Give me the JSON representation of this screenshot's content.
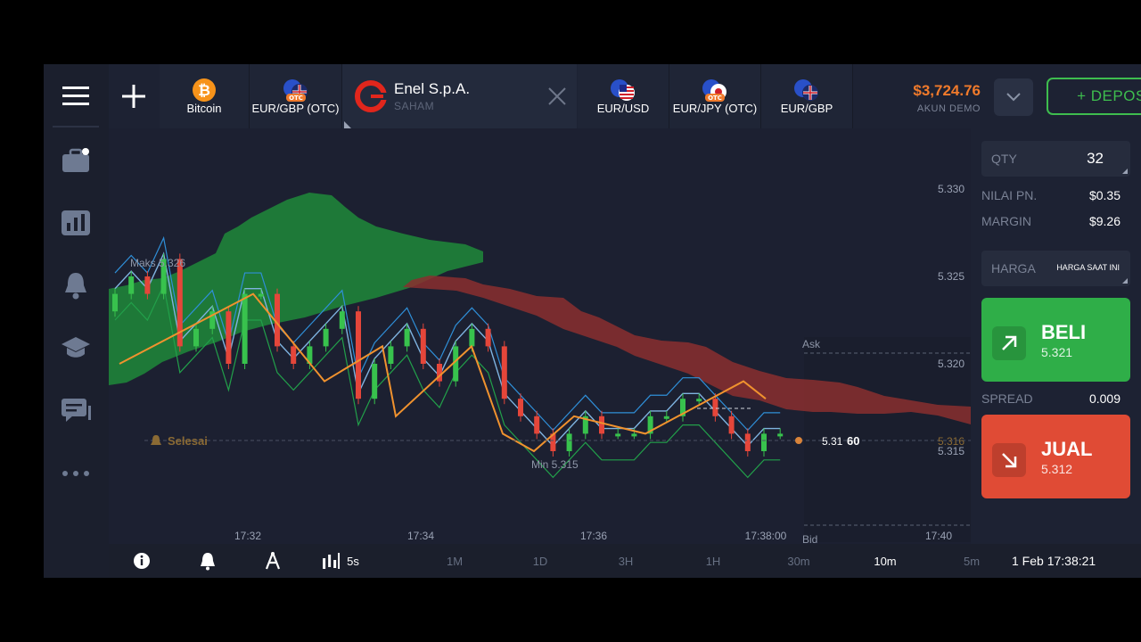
{
  "top_tabs": [
    {
      "label": "Bitcoin",
      "icon": "bitcoin-icon"
    },
    {
      "label": "EUR/GBP (OTC)",
      "icon": "eur-gbp-flag-icon",
      "badge": "OTC"
    },
    {
      "label": "Enel S.p.A.",
      "sub": "SAHAM",
      "icon": "enel-logo-icon",
      "active": true
    },
    {
      "label": "EUR/USD",
      "icon": "eur-usd-flag-icon"
    },
    {
      "label": "EUR/JPY (OTC)",
      "icon": "eur-jpy-flag-icon",
      "badge": "OTC"
    },
    {
      "label": "EUR/GBP",
      "icon": "eur-gbp-flag-icon"
    }
  ],
  "account": {
    "balance": "$3,724.76",
    "type": "AKUN DEMO",
    "deposit_label": "+ DEPOSIT"
  },
  "panel": {
    "qty_label": "QTY",
    "qty_value": "32",
    "nilai_label": "NILAI PN.",
    "nilai_value": "$0.35",
    "margin_label": "MARGIN",
    "margin_value": "$9.26",
    "harga_label": "HARGA",
    "harga_value": "HARGA SAAT INI",
    "buy_label": "BELI",
    "buy_price": "5.321",
    "spread_label": "SPREAD",
    "spread_value": "0.009",
    "sell_label": "JUAL",
    "sell_price": "5.312"
  },
  "bottom": {
    "timeframe": "5s",
    "periods": [
      "1M",
      "1D",
      "3H",
      "1H",
      "30m",
      "10m",
      "5m"
    ],
    "active_period": "10m",
    "datetime": "1 Feb 17:38:21"
  },
  "chart_data": {
    "type": "candlestick",
    "instrument": "Enel S.p.A.",
    "x_ticks": [
      "17:32",
      "17:34",
      "17:36",
      "17:38:00",
      "17:40"
    ],
    "y_ticks": [
      5.33,
      5.325,
      5.32,
      5.315
    ],
    "ylim": [
      5.31,
      5.332
    ],
    "labels": {
      "max": "Maks 5.326",
      "min": "Min 5.315",
      "ask": "Ask",
      "bid": "Bid",
      "expiry": "Selesai",
      "current_price_main": "5.31",
      "current_price_bold": "60",
      "current_price_axis": "5.316"
    },
    "candles_approx_close": [
      5.324,
      5.325,
      5.324,
      5.326,
      5.321,
      5.322,
      5.323,
      5.32,
      5.324,
      5.324,
      5.321,
      5.32,
      5.321,
      5.322,
      5.323,
      5.318,
      5.32,
      5.321,
      5.322,
      5.32,
      5.319,
      5.321,
      5.322,
      5.321,
      5.318,
      5.317,
      5.316,
      5.315,
      5.316,
      5.317,
      5.316,
      5.316,
      5.316,
      5.317,
      5.317,
      5.318,
      5.318,
      5.317,
      5.316,
      5.315,
      5.316,
      5.316
    ],
    "zigzag": [
      5.32,
      5.324,
      5.319,
      5.321,
      5.317,
      5.321,
      5.316,
      5.315,
      5.317,
      5.316,
      5.319,
      5.318
    ],
    "ichimoku_bullish_region": "17:30-17:33",
    "ichimoku_bearish_region": "17:33-17:40"
  }
}
